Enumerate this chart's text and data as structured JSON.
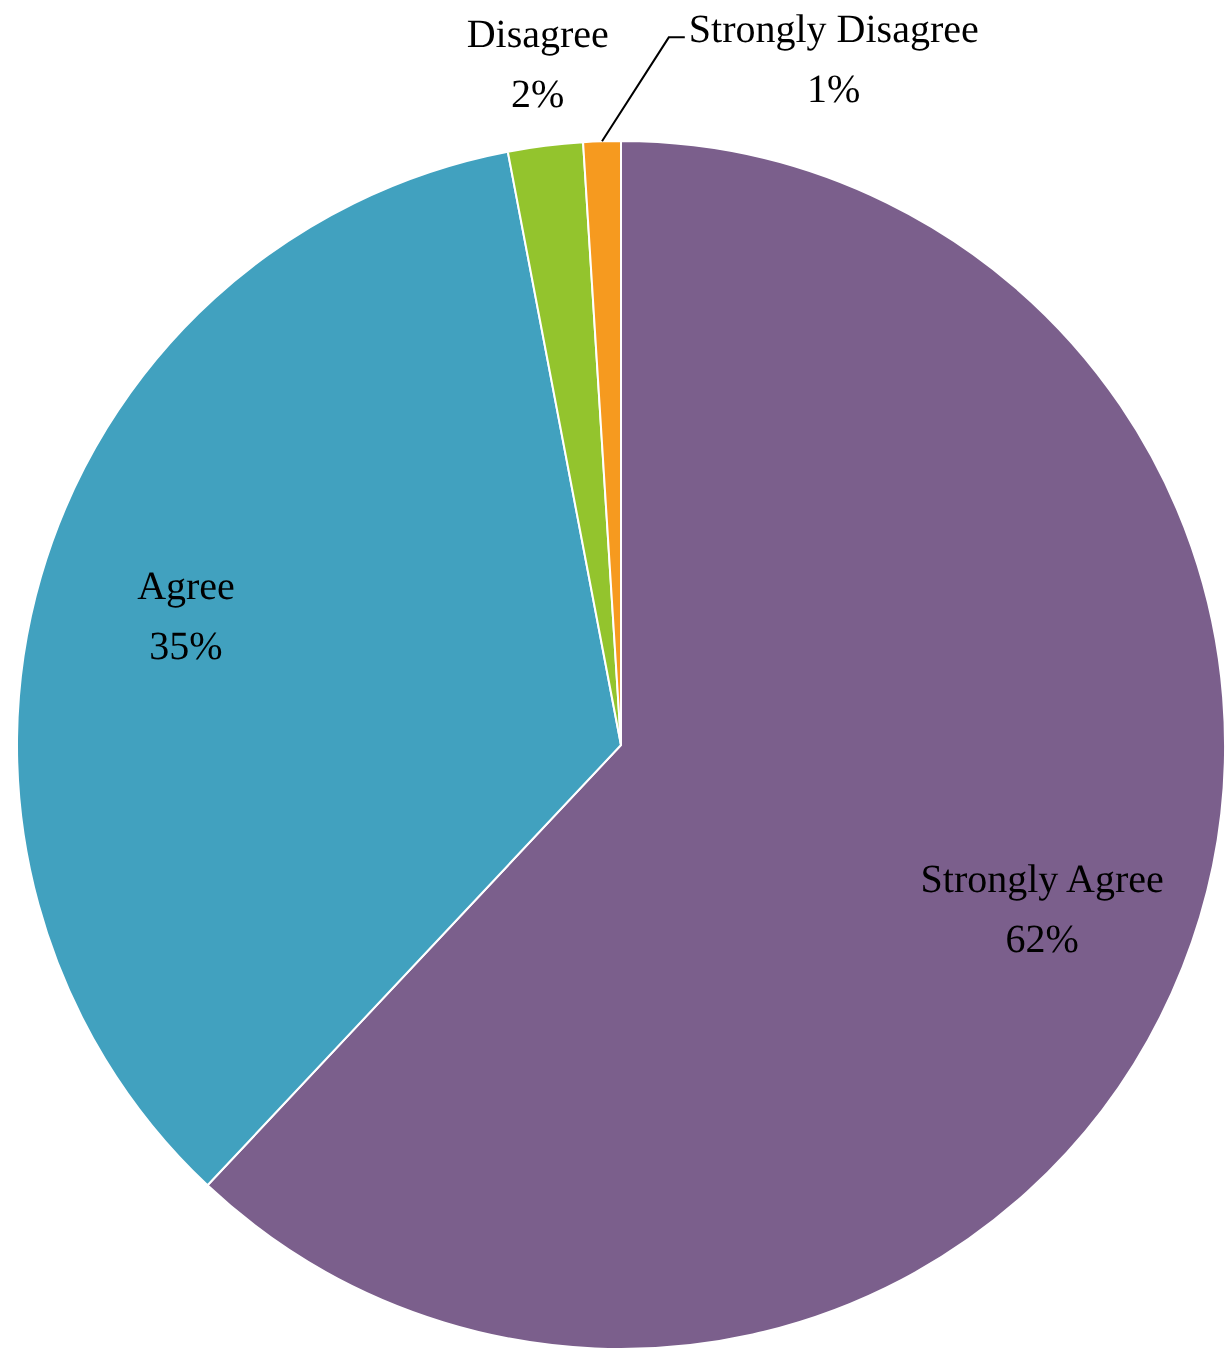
{
  "chart_data": {
    "type": "pie",
    "categories": [
      "Strongly Agree",
      "Agree",
      "Disagree",
      "Strongly Disagree"
    ],
    "values": [
      62,
      35,
      2,
      1
    ],
    "value_labels": [
      "62%",
      "35%",
      "2%",
      "1%"
    ],
    "colors": [
      "#7b5f8c",
      "#41a1bf",
      "#93c42d",
      "#f69a1f"
    ]
  }
}
